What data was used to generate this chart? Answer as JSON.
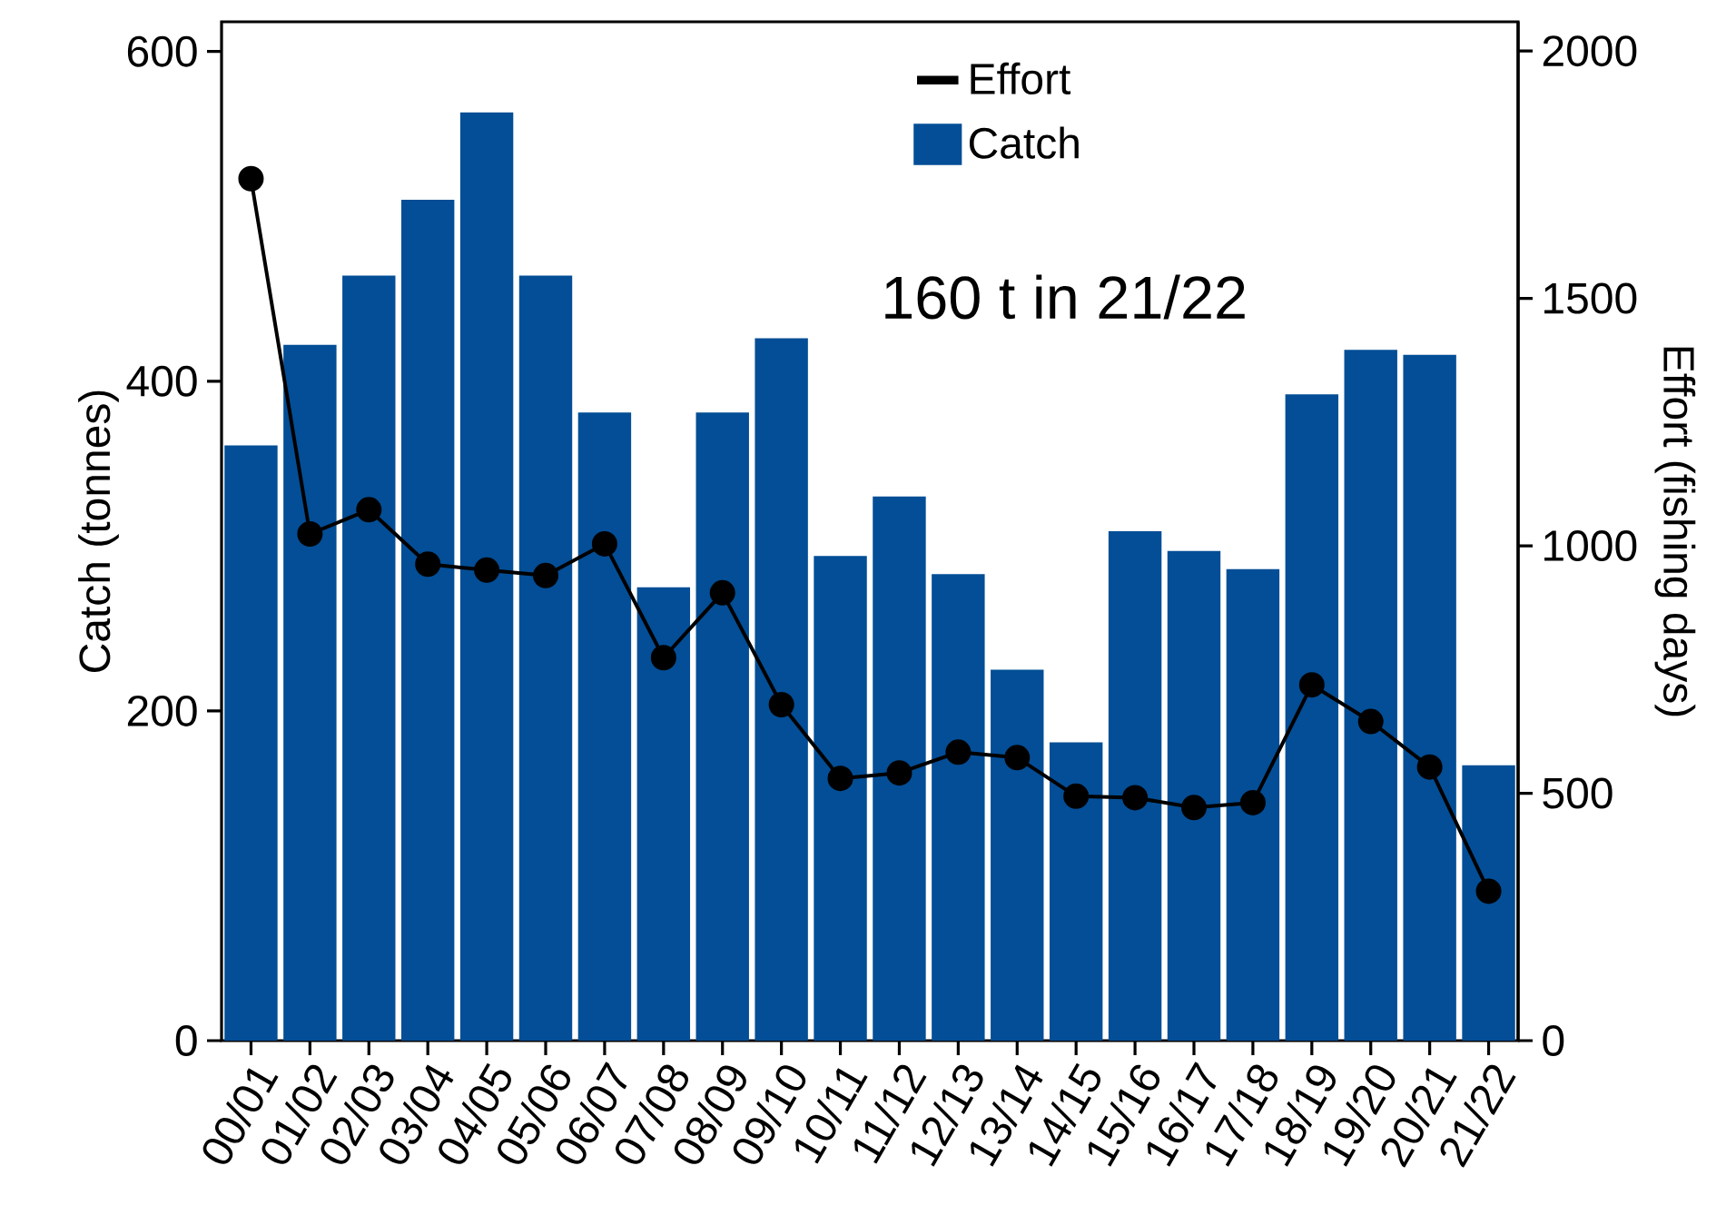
{
  "chart_data": {
    "type": "bar",
    "categories": [
      "00/01",
      "01/02",
      "02/03",
      "03/04",
      "04/05",
      "05/06",
      "06/07",
      "07/08",
      "08/09",
      "09/10",
      "10/11",
      "11/12",
      "12/13",
      "13/14",
      "14/15",
      "15/16",
      "16/17",
      "17/18",
      "18/19",
      "19/20",
      "20/21",
      "21/22"
    ],
    "series": [
      {
        "name": "Catch",
        "type": "bar",
        "color": "#034e96",
        "values": [
          361,
          422,
          464,
          510,
          563,
          464,
          381,
          275,
          381,
          426,
          294,
          330,
          283,
          225,
          181,
          309,
          297,
          286,
          392,
          419,
          416,
          167
        ]
      },
      {
        "name": "Effort",
        "type": "line",
        "axis": "y2",
        "color": "#000000",
        "values": [
          1742,
          1024,
          1073,
          963,
          951,
          940,
          1004,
          774,
          905,
          679,
          530,
          541,
          583,
          572,
          494,
          491,
          471,
          481,
          719,
          645,
          553,
          302
        ]
      }
    ],
    "ylabel": "Catch (tonnes)",
    "y2label": "Effort (fishing days)",
    "ylim": [
      0,
      618
    ],
    "yticks": [
      0,
      200,
      400,
      600
    ],
    "y2lim": [
      0,
      2059
    ],
    "y2ticks": [
      0,
      500,
      1000,
      1500,
      2000
    ],
    "marker": "circle",
    "legend": "top",
    "annotations": [
      "160 t in 21/22"
    ]
  }
}
